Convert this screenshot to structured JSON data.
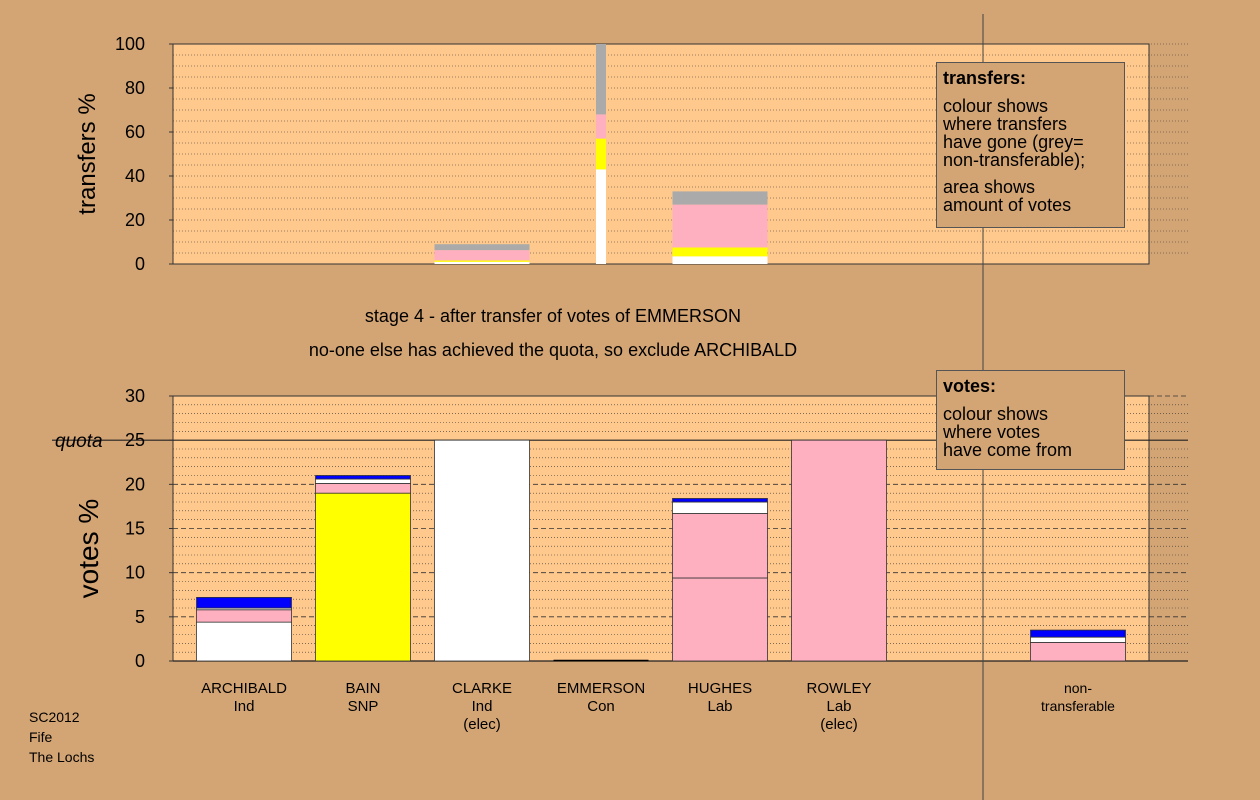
{
  "stage": {
    "line1": "stage 4 - after transfer of votes of EMMERSON",
    "line2": "no-one else has achieved the quota, so exclude ARCHIBALD"
  },
  "legend_transfers": {
    "title": "transfers:",
    "lines_1": [
      "colour shows",
      "where transfers",
      "have gone (grey=",
      "non-transferable);"
    ],
    "lines_2": [
      "area shows",
      "amount of votes"
    ]
  },
  "legend_votes": {
    "title": "votes:",
    "lines": [
      "colour shows",
      "where votes",
      "have come from"
    ]
  },
  "footer": [
    "SC2012",
    "Fife",
    "The Lochs"
  ],
  "colors": {
    "background": "#d4a574",
    "plot": "#ffc98d",
    "white": "#ffffff",
    "snp_yellow": "#ffff00",
    "lab_pink": "#ffb0c0",
    "con_blue": "#0000ff",
    "grey": "#aaaaaa"
  },
  "chart_data": [
    {
      "type": "bar",
      "title": "",
      "ylabel": "transfers %",
      "ylim": [
        0,
        100
      ],
      "yticks": [
        0,
        20,
        40,
        60,
        80,
        100
      ],
      "categories": [
        "ARCHIBALD",
        "BAIN",
        "CLARKE",
        "EMMERSON",
        "HUGHES",
        "ROWLEY",
        "non-transferable"
      ],
      "stacks": [
        [],
        [],
        [
          {
            "color": "white",
            "from": 0,
            "to": 1
          },
          {
            "color": "snp_yellow",
            "from": 1,
            "to": 1.6
          },
          {
            "color": "lab_pink",
            "from": 1.6,
            "to": 6.3
          },
          {
            "color": "grey",
            "from": 6.3,
            "to": 9
          }
        ],
        [
          {
            "color": "white",
            "from": 0,
            "to": 43
          },
          {
            "color": "snp_yellow",
            "from": 43,
            "to": 57
          },
          {
            "color": "lab_pink",
            "from": 57,
            "to": 68
          },
          {
            "color": "grey",
            "from": 68,
            "to": 100
          }
        ],
        [
          {
            "color": "white",
            "from": 0,
            "to": 3.5
          },
          {
            "color": "snp_yellow",
            "from": 3.5,
            "to": 7.5
          },
          {
            "color": "lab_pink",
            "from": 7.5,
            "to": 27
          },
          {
            "color": "grey",
            "from": 27,
            "to": 33
          }
        ],
        [],
        []
      ],
      "narrow_bar_index": 3
    },
    {
      "type": "bar",
      "title": "",
      "ylabel": "votes %",
      "ylim": [
        0,
        30
      ],
      "yticks": [
        0,
        5,
        10,
        15,
        20,
        25,
        30
      ],
      "quota_label": "quota",
      "quota": 25,
      "categories": [
        "ARCHIBALD",
        "BAIN",
        "CLARKE",
        "EMMERSON",
        "HUGHES",
        "ROWLEY",
        "non-transferable"
      ],
      "xlabels": [
        [
          "ARCHIBALD",
          "Ind"
        ],
        [
          "BAIN",
          "SNP"
        ],
        [
          "CLARKE",
          "Ind",
          "(elec)"
        ],
        [
          "EMMERSON",
          "Con"
        ],
        [
          "HUGHES",
          "Lab"
        ],
        [
          "ROWLEY",
          "Lab",
          "(elec)"
        ],
        [
          "non-",
          "transferable"
        ]
      ],
      "stacks": [
        [
          {
            "color": "white",
            "from": 0,
            "to": 4.4
          },
          {
            "color": "lab_pink",
            "from": 4.4,
            "to": 5.8
          },
          {
            "color": "white",
            "from": 5.8,
            "to": 6.0
          },
          {
            "color": "con_blue",
            "from": 6.0,
            "to": 7.2
          }
        ],
        [
          {
            "color": "snp_yellow",
            "from": 0,
            "to": 19
          },
          {
            "color": "lab_pink",
            "from": 19,
            "to": 20.1
          },
          {
            "color": "white",
            "from": 20.1,
            "to": 20.6
          },
          {
            "color": "con_blue",
            "from": 20.6,
            "to": 21
          }
        ],
        [
          {
            "color": "white",
            "from": 0,
            "to": 25
          }
        ],
        [],
        [
          {
            "color": "lab_pink",
            "from": 0,
            "to": 9.4
          },
          {
            "color": "lab_pink",
            "from": 9.4,
            "to": 16.7
          },
          {
            "color": "white",
            "from": 16.7,
            "to": 18.0
          },
          {
            "color": "con_blue",
            "from": 18.0,
            "to": 18.4
          }
        ],
        [
          {
            "color": "lab_pink",
            "from": 0,
            "to": 25
          }
        ],
        [
          {
            "color": "lab_pink",
            "from": 0,
            "to": 2.1
          },
          {
            "color": "white",
            "from": 2.1,
            "to": 2.7
          },
          {
            "color": "con_blue",
            "from": 2.7,
            "to": 3.5
          }
        ]
      ]
    }
  ]
}
